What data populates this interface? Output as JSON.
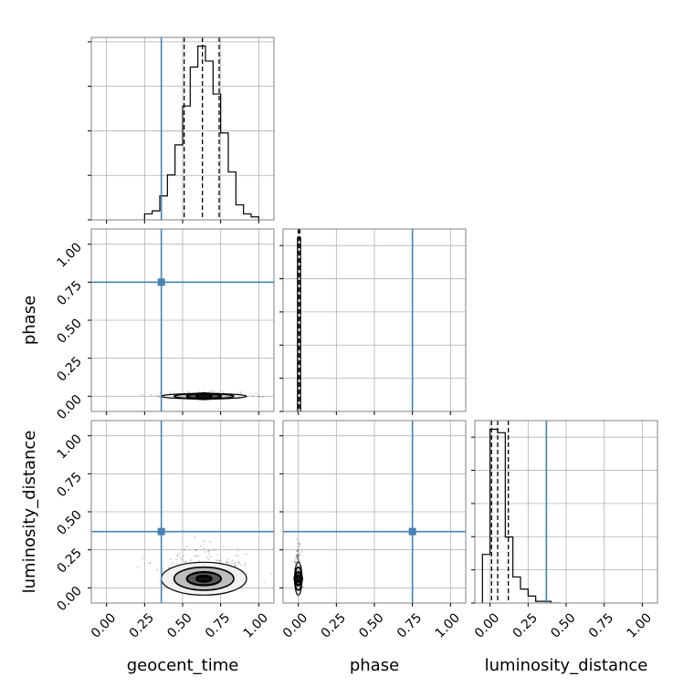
{
  "chart_data": {
    "type": "corner",
    "parameters": [
      "geocent_time",
      "phase",
      "luminosity_distance"
    ],
    "tick_labels": [
      "0.00",
      "0.25",
      "0.50",
      "0.75",
      "1.00"
    ],
    "axis_range": [
      -0.1,
      1.1
    ],
    "truths": {
      "geocent_time": 0.36,
      "phase": 0.75,
      "luminosity_distance": 0.37
    },
    "truth_color": "#4682b4",
    "grid": true,
    "quantiles": {
      "geocent_time": [
        0.51,
        0.63,
        0.74
      ],
      "phase": [
        0.0,
        0.0,
        0.01
      ],
      "luminosity_distance": [
        0.01,
        0.05,
        0.12
      ]
    },
    "histograms": {
      "geocent_time": {
        "bin_edges": [
          0.25,
          0.3,
          0.35,
          0.4,
          0.45,
          0.5,
          0.55,
          0.6,
          0.65,
          0.7,
          0.75,
          0.8,
          0.85,
          0.9,
          0.95,
          1.0
        ],
        "counts": [
          2,
          3,
          8,
          15,
          25,
          38,
          51,
          58,
          53,
          42,
          29,
          16,
          5,
          2,
          1
        ]
      },
      "phase": {
        "bin_edges": [
          -0.005,
          0.005,
          0.015
        ],
        "counts": [
          100,
          100
        ]
      },
      "luminosity_distance": {
        "bin_edges": [
          -0.05,
          0.0,
          0.05,
          0.1,
          0.15,
          0.2,
          0.25,
          0.3,
          0.35,
          0.4,
          0.45
        ],
        "counts": [
          28,
          100,
          98,
          38,
          15,
          8,
          4,
          1,
          1,
          0
        ]
      }
    },
    "contours": [
      {
        "x": "geocent_time",
        "y": "phase",
        "center": [
          0.64,
          0.0
        ],
        "spread": [
          0.14,
          0.012
        ]
      },
      {
        "x": "geocent_time",
        "y": "luminosity_distance",
        "center": [
          0.64,
          0.06
        ],
        "spread": [
          0.14,
          0.09
        ]
      },
      {
        "x": "phase",
        "y": "luminosity_distance",
        "center": [
          0.0,
          0.06
        ],
        "spread": [
          0.01,
          0.09
        ]
      }
    ]
  }
}
